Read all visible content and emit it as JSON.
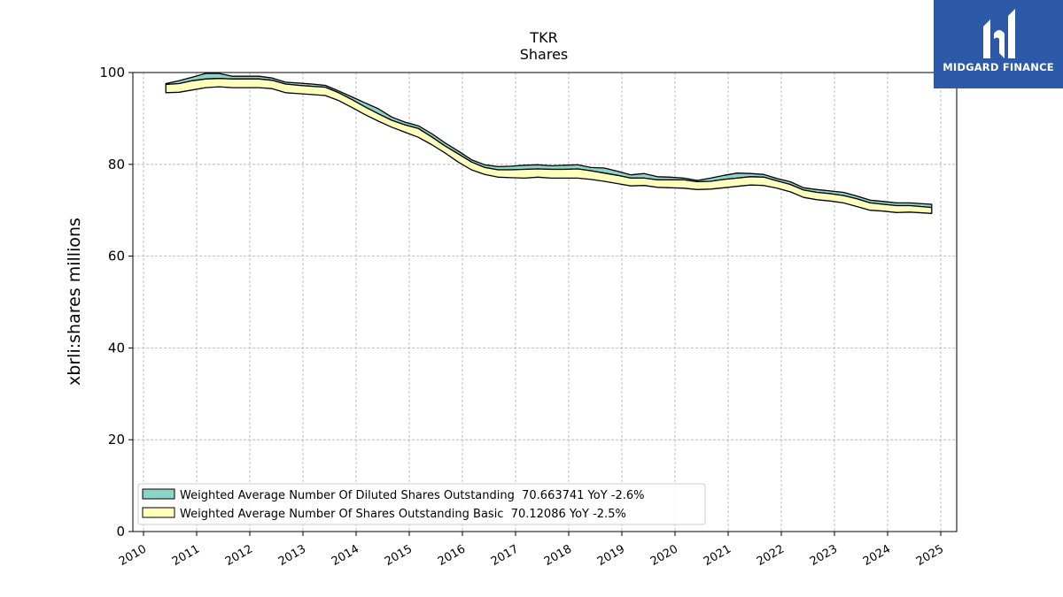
{
  "chart_data": {
    "type": "area",
    "title": "TKR",
    "subtitle": "Shares",
    "xlabel": "",
    "ylabel": "xbrli:shares millions",
    "xlim": [
      2009.8,
      2025.3
    ],
    "ylim": [
      0,
      100
    ],
    "x_ticks": [
      "2010",
      "2011",
      "2012",
      "2013",
      "2014",
      "2015",
      "2016",
      "2017",
      "2018",
      "2019",
      "2020",
      "2021",
      "2022",
      "2023",
      "2024",
      "2025"
    ],
    "y_ticks": [
      "0",
      "20",
      "40",
      "60",
      "80",
      "100"
    ],
    "grid": true,
    "legend_position": "lower-left",
    "x": [
      2010.42,
      2010.67,
      2010.92,
      2011.17,
      2011.42,
      2011.67,
      2011.92,
      2012.17,
      2012.42,
      2012.67,
      2012.92,
      2013.17,
      2013.42,
      2013.67,
      2013.92,
      2014.17,
      2014.42,
      2014.67,
      2014.92,
      2015.17,
      2015.42,
      2015.67,
      2015.92,
      2016.17,
      2016.42,
      2016.67,
      2016.92,
      2017.17,
      2017.42,
      2017.67,
      2017.92,
      2018.17,
      2018.42,
      2018.67,
      2018.92,
      2019.17,
      2019.42,
      2019.67,
      2019.92,
      2020.17,
      2020.42,
      2020.67,
      2020.92,
      2021.17,
      2021.42,
      2021.67,
      2021.92,
      2022.17,
      2022.42,
      2022.67,
      2022.92,
      2023.17,
      2023.42,
      2023.67,
      2023.92,
      2024.17,
      2024.42,
      2024.83
    ],
    "series": [
      {
        "name": "Weighted Average Number Of Diluted Shares Outstanding",
        "legend_label": "Weighted Average Number Of Diluted Shares Outstanding  70.663741 YoY -2.6%",
        "color": "#8ed3c7",
        "values": [
          97.6,
          98.2,
          99.0,
          99.8,
          99.8,
          99.2,
          99.2,
          99.2,
          98.8,
          97.9,
          97.7,
          97.5,
          97.2,
          96.0,
          94.7,
          93.4,
          92.1,
          90.3,
          89.2,
          88.4,
          86.7,
          84.7,
          82.9,
          81.0,
          79.9,
          79.5,
          79.6,
          79.8,
          79.9,
          79.7,
          79.8,
          79.9,
          79.3,
          79.2,
          78.5,
          77.7,
          78.0,
          77.3,
          77.2,
          77.0,
          76.5,
          77.0,
          77.6,
          78.1,
          78.0,
          77.8,
          76.9,
          76.2,
          74.9,
          74.5,
          74.2,
          73.9,
          73.1,
          72.2,
          71.9,
          71.6,
          71.6,
          71.3
        ]
      },
      {
        "name": "Weighted Average Number Of Shares Outstanding Basic",
        "legend_label": "Weighted Average Number Of Shares Outstanding Basic  70.12086 YoY -2.5%",
        "color": "#ffffbe",
        "values": [
          97.4,
          97.6,
          98.2,
          98.6,
          98.7,
          98.6,
          98.6,
          98.6,
          98.3,
          97.5,
          97.2,
          97.0,
          96.8,
          95.6,
          94.1,
          92.5,
          91.0,
          89.6,
          88.6,
          87.8,
          86.0,
          84.0,
          82.3,
          80.5,
          79.3,
          78.8,
          78.8,
          78.9,
          79.0,
          78.9,
          78.9,
          79.0,
          78.6,
          78.1,
          77.6,
          77.0,
          77.0,
          76.6,
          76.6,
          76.6,
          76.2,
          76.3,
          76.7,
          77.0,
          77.3,
          77.2,
          76.4,
          75.6,
          74.4,
          73.9,
          73.6,
          73.2,
          72.5,
          71.6,
          71.3,
          71.0,
          71.0,
          70.6
        ]
      }
    ],
    "lower_values": [
      95.6,
      95.7,
      96.2,
      96.7,
      96.9,
      96.7,
      96.7,
      96.7,
      96.5,
      95.6,
      95.4,
      95.2,
      95.0,
      93.9,
      92.4,
      90.8,
      89.4,
      88.1,
      87.0,
      85.9,
      84.3,
      82.5,
      80.5,
      78.8,
      77.8,
      77.2,
      77.1,
      77.0,
      77.2,
      77.0,
      77.0,
      77.0,
      76.7,
      76.3,
      75.8,
      75.3,
      75.4,
      75.0,
      74.9,
      74.8,
      74.5,
      74.6,
      74.9,
      75.2,
      75.5,
      75.4,
      74.8,
      74.0,
      72.8,
      72.3,
      72.0,
      71.6,
      70.8,
      70.0,
      69.8,
      69.5,
      69.6,
      69.3
    ]
  },
  "logo": {
    "name": "MIDGARD FINANCE",
    "bg_color": "#2c5aa8"
  }
}
